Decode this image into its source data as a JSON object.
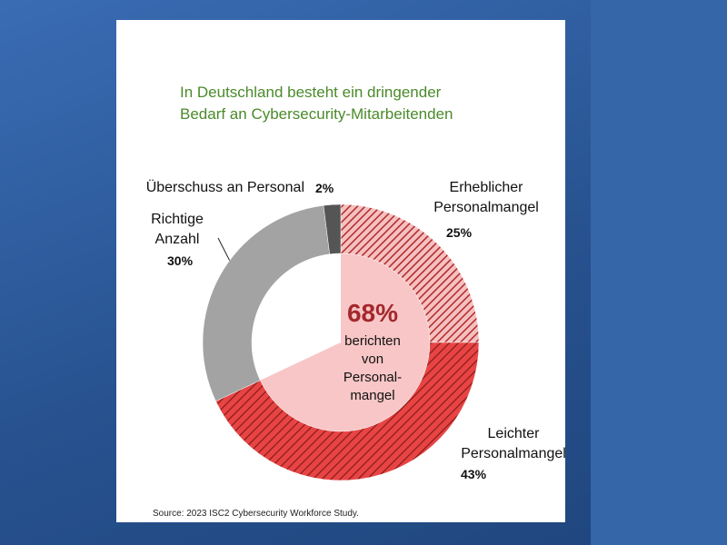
{
  "chart_data": {
    "type": "donut",
    "title": "In Deutschland besteht ein dringender Bedarf an Cybersecurity-Mitarbeitenden",
    "categories": [
      "Erheblicher Personalmangel",
      "Leichter Personalmangel",
      "Richtige Anzahl",
      "Überschuss an Personal"
    ],
    "values": [
      25,
      43,
      30,
      2
    ],
    "value_labels": [
      "25%",
      "43%",
      "30%",
      "2%"
    ],
    "colors": [
      "#f4b3b3",
      "#e2403f",
      "#a3a3a3",
      "#555555"
    ],
    "center_label": "68%",
    "center_text": [
      "berichten",
      "von",
      "Personal-",
      "mangel"
    ],
    "source": "Source: 2023 ISC2 Cybersecurity Workforce Study."
  }
}
